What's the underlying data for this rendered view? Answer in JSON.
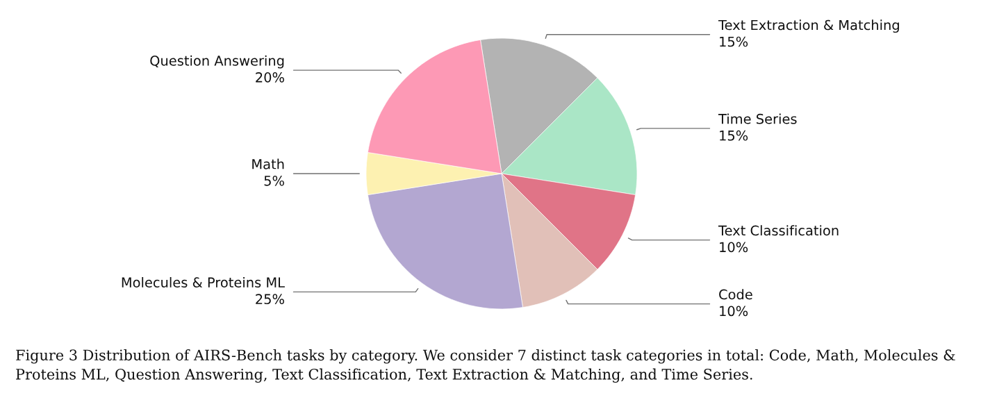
{
  "chart_data": {
    "type": "pie",
    "categories": [
      "Text Extraction & Matching",
      "Time Series",
      "Text Classification",
      "Code",
      "Molecules & Proteins ML",
      "Math",
      "Question Answering"
    ],
    "values": [
      15,
      15,
      10,
      10,
      25,
      5,
      20
    ],
    "value_labels": [
      "15%",
      "15%",
      "10%",
      "10%",
      "25%",
      "5%",
      "20%"
    ],
    "colors": [
      "#b3b3b3",
      "#aae6c6",
      "#e07487",
      "#e1c0b8",
      "#b3a7d1",
      "#fdf1b1",
      "#fd99b5"
    ],
    "annotations": [
      "Figure 3 Distribution of AIRS-Bench tasks by category. We consider 7 distinct task categories in total: Code, Math, Molecules & Proteins ML, Question Answering, Text Classification, Text Extraction & Matching, and Time Series."
    ]
  }
}
